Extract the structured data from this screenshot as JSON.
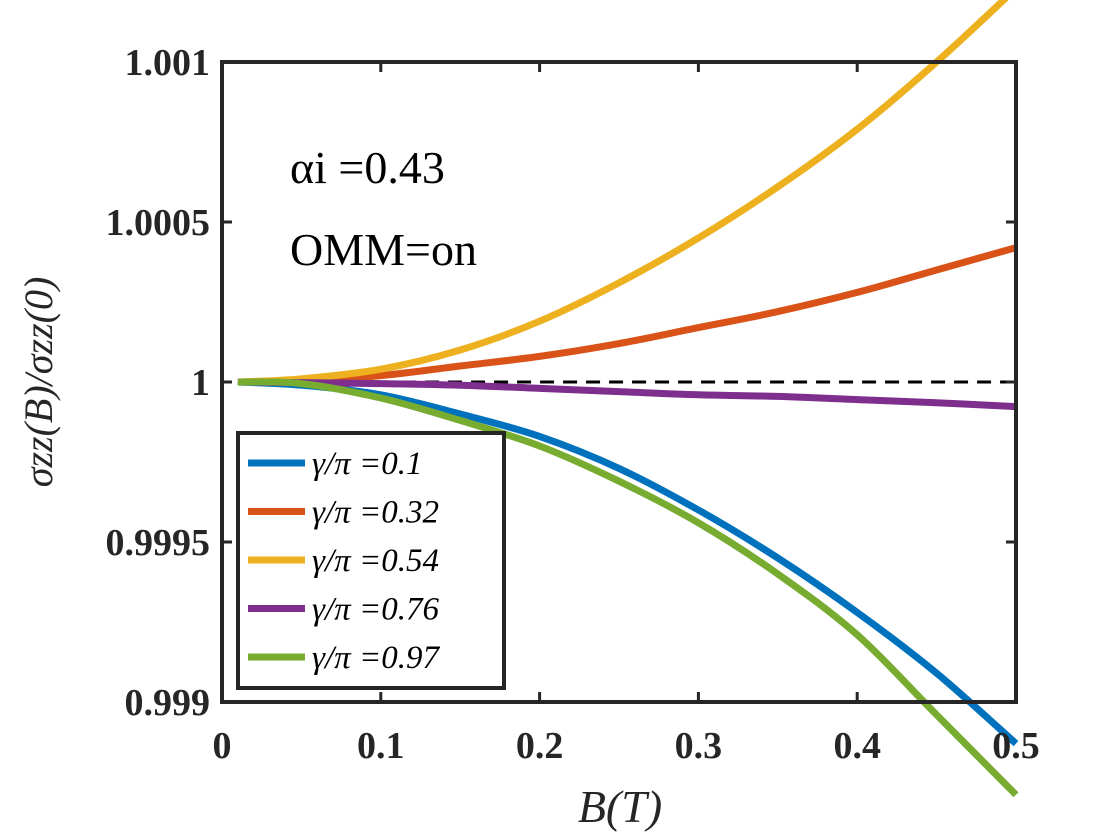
{
  "chart_data": {
    "type": "line",
    "xlabel": "B(T)",
    "ylabel": "σzz(B)/σzz(0)",
    "xlim": [
      0,
      0.5
    ],
    "ylim": [
      0.999,
      1.001
    ],
    "x_ticks": [
      0,
      0.1,
      0.2,
      0.3,
      0.4,
      0.5
    ],
    "x_tick_labels": [
      "0",
      "0.1",
      "0.2",
      "0.3",
      "0.4",
      "0.5"
    ],
    "y_ticks": [
      0.999,
      0.9995,
      1,
      1.0005,
      1.001
    ],
    "y_tick_labels": [
      "0.999",
      "0.9995",
      "1",
      "1.0005",
      "1.001"
    ],
    "grid": false,
    "legend_position": "bottom-left",
    "annotations": [
      {
        "text": "αi =0.43"
      },
      {
        "text": "OMM=on"
      }
    ],
    "reference_line": {
      "y": 1,
      "style": "dashed",
      "color": "#000000"
    },
    "x": [
      0.01,
      0.05,
      0.1,
      0.15,
      0.2,
      0.25,
      0.3,
      0.35,
      0.4,
      0.45,
      0.5
    ],
    "series": [
      {
        "name": "γ/π =0.1",
        "color": "#0072BD",
        "values": [
          1.0,
          0.99999,
          0.99996,
          0.9999,
          0.99983,
          0.99973,
          0.9996,
          0.99945,
          0.99928,
          0.99909,
          0.99887
        ]
      },
      {
        "name": "γ/π =0.32",
        "color": "#D95319",
        "values": [
          1.0,
          1.000005,
          1.00002,
          1.00005,
          1.00008,
          1.00012,
          1.00017,
          1.00022,
          1.00028,
          1.00035,
          1.00042
        ]
      },
      {
        "name": "γ/π =0.54",
        "color": "#EDB120",
        "values": [
          1.0,
          1.00001,
          1.00004,
          1.0001,
          1.00019,
          1.00031,
          1.00045,
          1.00061,
          1.00079,
          1.001,
          1.00123
        ]
      },
      {
        "name": "γ/π =0.76",
        "color": "#7E2F8E",
        "values": [
          1.0,
          0.999998,
          0.999995,
          0.99999,
          0.99998,
          0.99997,
          0.99996,
          0.999955,
          0.999945,
          0.999935,
          0.999923
        ]
      },
      {
        "name": "γ/π =0.97",
        "color": "#77AC30",
        "values": [
          1.0,
          0.999995,
          0.99995,
          0.99988,
          0.9998,
          0.99969,
          0.99956,
          0.9994,
          0.99921,
          0.99896,
          0.99871
        ]
      }
    ]
  }
}
